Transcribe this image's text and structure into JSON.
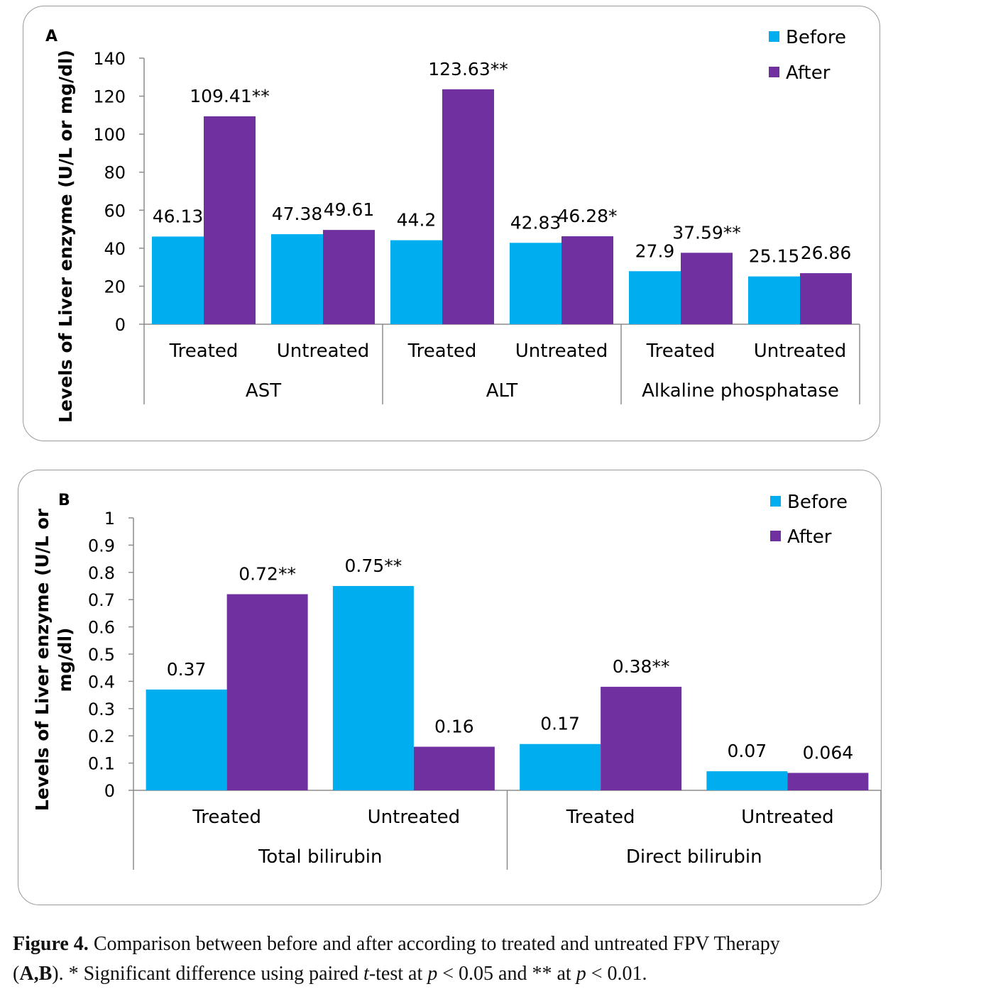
{
  "chart_data": [
    {
      "panel_label": "A",
      "type": "bar",
      "ylabel": "Levels of Liver enzyme (U/L or mg/dl)",
      "ylim": [
        0,
        140
      ],
      "yticks": [
        "0",
        "20",
        "40",
        "60",
        "80",
        "100",
        "120",
        "140"
      ],
      "yticks_values": [
        0,
        20,
        40,
        60,
        80,
        100,
        120,
        140
      ],
      "groups": [
        "AST",
        "ALT",
        "Alkaline phosphatase"
      ],
      "subcategories": [
        "Treated",
        "Untreated"
      ],
      "categories": [
        "Treated",
        "Untreated",
        "Treated",
        "Untreated",
        "Treated",
        "Untreated"
      ],
      "series": [
        {
          "name": "Before",
          "color": "#00AEEF",
          "values": [
            46.13,
            47.38,
            44.2,
            42.83,
            27.9,
            25.15
          ],
          "labels": [
            "46.13",
            "47.38",
            "44.2",
            "42.83",
            "27.9",
            "25.15"
          ]
        },
        {
          "name": "After",
          "color": "#7030A0",
          "values": [
            109.41,
            49.61,
            123.63,
            46.28,
            37.59,
            26.86
          ],
          "labels": [
            "109.41**",
            "49.61",
            "123.63**",
            "46.28*",
            "37.59**",
            "26.86"
          ]
        }
      ],
      "grid": false,
      "legend": "top-right"
    },
    {
      "panel_label": "B",
      "type": "bar",
      "ylabel_lines": [
        "Levels of Liver enzyme  (U/L or",
        "mg/dl)"
      ],
      "ylim": [
        0,
        1
      ],
      "yticks": [
        "0",
        "0.1",
        "0.2",
        "0.3",
        "0.4",
        "0.5",
        "0.6",
        "0.7",
        "0.8",
        "0.9",
        "1"
      ],
      "yticks_values": [
        0,
        0.1,
        0.2,
        0.3,
        0.4,
        0.5,
        0.6,
        0.7,
        0.8,
        0.9,
        1
      ],
      "groups": [
        "Total bilirubin",
        "Direct bilirubin"
      ],
      "subcategories": [
        "Treated",
        "Untreated"
      ],
      "categories": [
        "Treated",
        "Untreated",
        "Treated",
        "Untreated"
      ],
      "series": [
        {
          "name": "Before",
          "color": "#00AEEF",
          "values": [
            0.37,
            0.75,
            0.17,
            0.07
          ],
          "labels": [
            "0.37",
            "0.75**",
            "0.17",
            "0.07"
          ]
        },
        {
          "name": "After",
          "color": "#7030A0",
          "values": [
            0.72,
            0.16,
            0.38,
            0.064
          ],
          "labels": [
            "0.72**",
            "0.16",
            "0.38**",
            "0.064"
          ]
        }
      ],
      "grid": false,
      "legend": "top-right"
    }
  ],
  "caption": {
    "figure_label": "Figure 4.",
    "line1": "Comparison between before and after according to treated and untreated FPV Therapy",
    "open_paren": "(",
    "ref_a": "A",
    "comma": ",",
    "ref_b": "B",
    "mid": "). * Significant difference using paired ",
    "t": "t",
    "mid2": "-test at ",
    "p1": "p",
    "mid3": " < 0.05 and ** at ",
    "p2": "p",
    "end": " < 0.01."
  }
}
